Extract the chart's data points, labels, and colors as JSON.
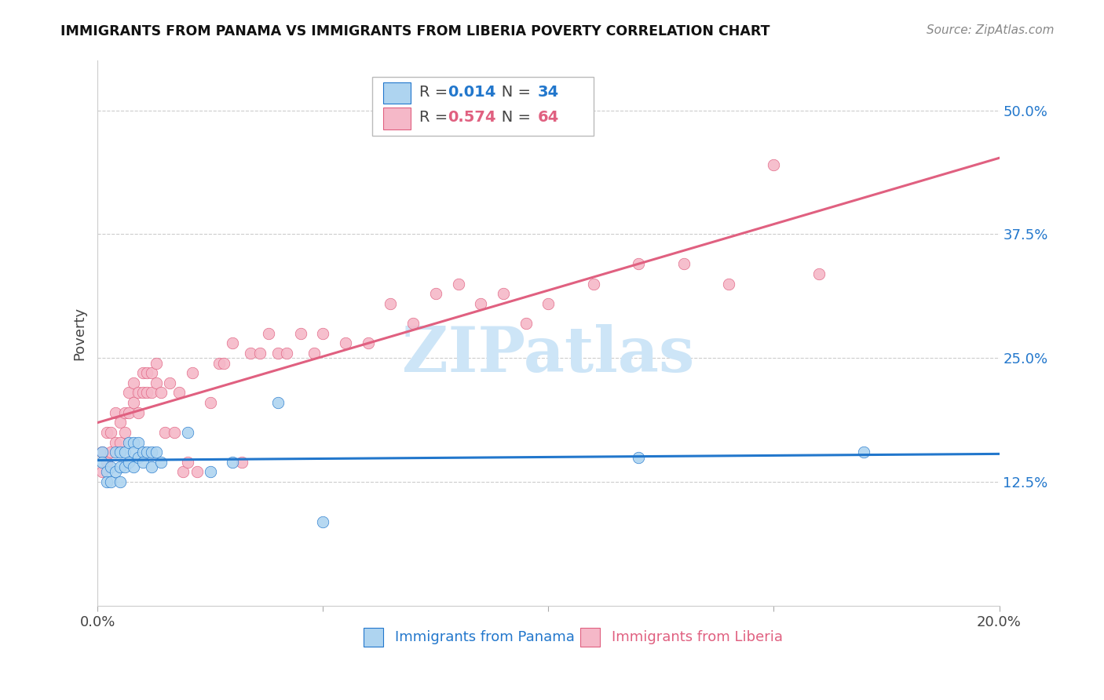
{
  "title": "IMMIGRANTS FROM PANAMA VS IMMIGRANTS FROM LIBERIA POVERTY CORRELATION CHART",
  "source": "Source: ZipAtlas.com",
  "xlabel_panama": "Immigrants from Panama",
  "xlabel_liberia": "Immigrants from Liberia",
  "ylabel": "Poverty",
  "xlim": [
    0.0,
    0.2
  ],
  "ylim": [
    0.0,
    0.55
  ],
  "yticks": [
    0.125,
    0.25,
    0.375,
    0.5
  ],
  "ytick_labels": [
    "12.5%",
    "25.0%",
    "37.5%",
    "50.0%"
  ],
  "xticks": [
    0.0,
    0.05,
    0.1,
    0.15,
    0.2
  ],
  "xtick_labels": [
    "0.0%",
    "",
    "",
    "",
    "20.0%"
  ],
  "color_panama": "#aed4f0",
  "color_liberia": "#f5b8c8",
  "line_color_panama": "#2277cc",
  "line_color_liberia": "#e06080",
  "watermark": "ZIPatlas",
  "watermark_color": "#cde5f7",
  "panama_x": [
    0.001,
    0.001,
    0.002,
    0.002,
    0.003,
    0.003,
    0.004,
    0.004,
    0.005,
    0.005,
    0.005,
    0.006,
    0.006,
    0.007,
    0.007,
    0.008,
    0.008,
    0.008,
    0.009,
    0.009,
    0.01,
    0.01,
    0.011,
    0.012,
    0.012,
    0.013,
    0.014,
    0.02,
    0.025,
    0.03,
    0.04,
    0.05,
    0.12,
    0.17
  ],
  "panama_y": [
    0.155,
    0.145,
    0.135,
    0.125,
    0.14,
    0.125,
    0.155,
    0.135,
    0.155,
    0.14,
    0.125,
    0.155,
    0.14,
    0.165,
    0.145,
    0.165,
    0.155,
    0.14,
    0.165,
    0.15,
    0.155,
    0.145,
    0.155,
    0.155,
    0.14,
    0.155,
    0.145,
    0.175,
    0.135,
    0.145,
    0.205,
    0.085,
    0.15,
    0.155
  ],
  "liberia_x": [
    0.001,
    0.001,
    0.002,
    0.002,
    0.003,
    0.003,
    0.004,
    0.004,
    0.005,
    0.005,
    0.006,
    0.006,
    0.007,
    0.007,
    0.008,
    0.008,
    0.009,
    0.009,
    0.01,
    0.01,
    0.011,
    0.011,
    0.012,
    0.012,
    0.013,
    0.013,
    0.014,
    0.015,
    0.016,
    0.017,
    0.018,
    0.019,
    0.02,
    0.021,
    0.022,
    0.025,
    0.027,
    0.028,
    0.03,
    0.032,
    0.034,
    0.036,
    0.038,
    0.04,
    0.042,
    0.045,
    0.048,
    0.05,
    0.055,
    0.06,
    0.065,
    0.07,
    0.075,
    0.08,
    0.085,
    0.09,
    0.095,
    0.1,
    0.11,
    0.12,
    0.13,
    0.14,
    0.15,
    0.16
  ],
  "liberia_y": [
    0.155,
    0.135,
    0.175,
    0.145,
    0.175,
    0.155,
    0.195,
    0.165,
    0.185,
    0.165,
    0.195,
    0.175,
    0.215,
    0.195,
    0.225,
    0.205,
    0.215,
    0.195,
    0.235,
    0.215,
    0.235,
    0.215,
    0.235,
    0.215,
    0.245,
    0.225,
    0.215,
    0.175,
    0.225,
    0.175,
    0.215,
    0.135,
    0.145,
    0.235,
    0.135,
    0.205,
    0.245,
    0.245,
    0.265,
    0.145,
    0.255,
    0.255,
    0.275,
    0.255,
    0.255,
    0.275,
    0.255,
    0.275,
    0.265,
    0.265,
    0.305,
    0.285,
    0.315,
    0.325,
    0.305,
    0.315,
    0.285,
    0.305,
    0.325,
    0.345,
    0.345,
    0.325,
    0.445,
    0.335
  ]
}
